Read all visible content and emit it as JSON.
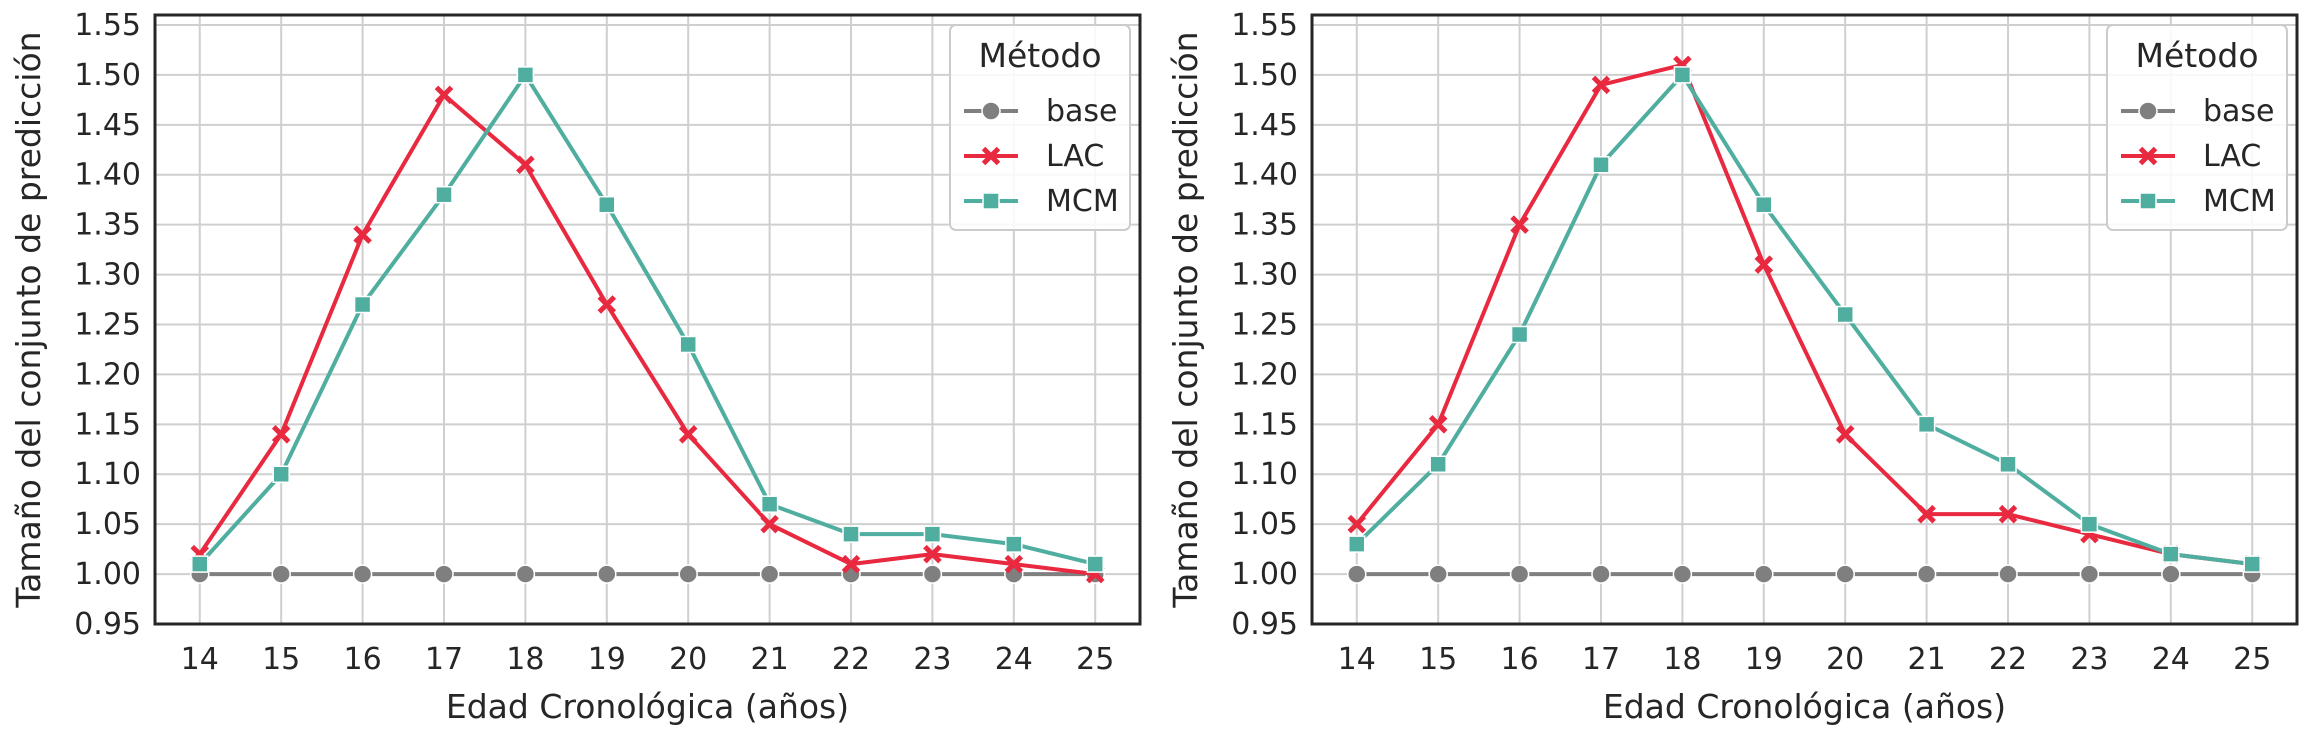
{
  "colors": {
    "base": "#7f7f7f",
    "LAC": "#e8293f",
    "MCM": "#4fae9f",
    "grid": "#cfcfcf",
    "frame": "#262626"
  },
  "chart_data": [
    {
      "type": "line",
      "xlabel": "Edad Cronológica (años)",
      "ylabel": "Tamaño del conjunto de predicción",
      "x": [
        14,
        15,
        16,
        17,
        18,
        19,
        20,
        21,
        22,
        23,
        24,
        25
      ],
      "xlim": [
        13.45,
        25.55
      ],
      "ylim": [
        0.95,
        1.56
      ],
      "yticks": [
        "0.95",
        "1.00",
        "1.05",
        "1.10",
        "1.15",
        "1.20",
        "1.25",
        "1.30",
        "1.35",
        "1.40",
        "1.45",
        "1.50",
        "1.55"
      ],
      "grid": true,
      "legend": {
        "title": "Método",
        "placement": "top-right"
      },
      "series": [
        {
          "name": "base",
          "marker": "circle",
          "values": [
            1.0,
            1.0,
            1.0,
            1.0,
            1.0,
            1.0,
            1.0,
            1.0,
            1.0,
            1.0,
            1.0,
            1.0
          ]
        },
        {
          "name": "LAC",
          "marker": "x",
          "values": [
            1.02,
            1.14,
            1.34,
            1.48,
            1.41,
            1.27,
            1.14,
            1.05,
            1.01,
            1.02,
            1.01,
            1.0
          ]
        },
        {
          "name": "MCM",
          "marker": "square",
          "values": [
            1.01,
            1.1,
            1.27,
            1.38,
            1.5,
            1.37,
            1.23,
            1.07,
            1.04,
            1.04,
            1.03,
            1.01
          ]
        }
      ]
    },
    {
      "type": "line",
      "xlabel": "Edad Cronológica (años)",
      "ylabel": "Tamaño del conjunto de predicción",
      "x": [
        14,
        15,
        16,
        17,
        18,
        19,
        20,
        21,
        22,
        23,
        24,
        25
      ],
      "xlim": [
        13.45,
        25.55
      ],
      "ylim": [
        0.95,
        1.56
      ],
      "yticks": [
        "0.95",
        "1.00",
        "1.05",
        "1.10",
        "1.15",
        "1.20",
        "1.25",
        "1.30",
        "1.35",
        "1.40",
        "1.45",
        "1.50",
        "1.55"
      ],
      "grid": true,
      "legend": {
        "title": "Método",
        "placement": "top-right"
      },
      "series": [
        {
          "name": "base",
          "marker": "circle",
          "values": [
            1.0,
            1.0,
            1.0,
            1.0,
            1.0,
            1.0,
            1.0,
            1.0,
            1.0,
            1.0,
            1.0,
            1.0
          ]
        },
        {
          "name": "LAC",
          "marker": "x",
          "values": [
            1.05,
            1.15,
            1.35,
            1.49,
            1.51,
            1.31,
            1.14,
            1.06,
            1.06,
            1.04,
            1.02,
            1.01
          ]
        },
        {
          "name": "MCM",
          "marker": "square",
          "values": [
            1.03,
            1.11,
            1.24,
            1.41,
            1.5,
            1.37,
            1.26,
            1.15,
            1.11,
            1.05,
            1.02,
            1.01
          ]
        }
      ]
    }
  ]
}
